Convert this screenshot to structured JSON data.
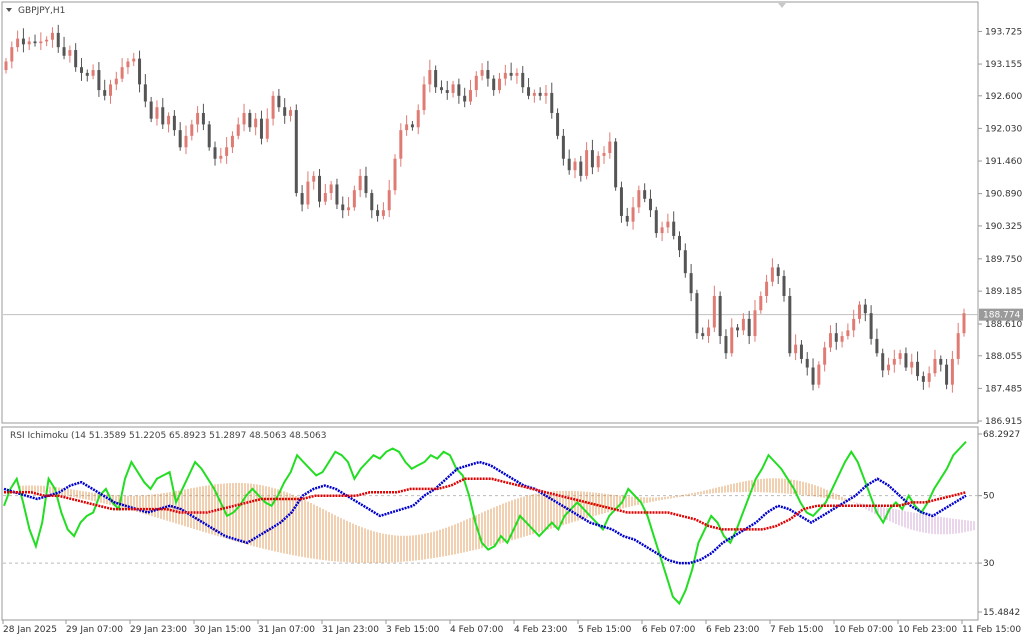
{
  "window": {
    "symbol_label": "GBPJPY,H1",
    "indicator_label": "RSI Ichimoku (14 51.3589 51.2205 65.8923 51.2897 48.5063 48.5063"
  },
  "colors": {
    "bull_candle": "#e07b74",
    "bear_candle": "#555555",
    "tenkan": "#e00000",
    "kijun": "#0000cc",
    "chikou": "#22dd22",
    "cloud_up": "#d98a3a",
    "cloud_down": "#cc99cc",
    "current_price_tag": "#9a9a9a"
  },
  "chart_data": [
    {
      "type": "candlestick",
      "ylim": [
        186.915,
        194.1
      ],
      "y_ticks": [
        "193.725",
        "193.155",
        "192.600",
        "192.030",
        "191.460",
        "190.890",
        "190.325",
        "189.750",
        "189.185",
        "188.610",
        "188.055",
        "187.485",
        "186.915"
      ],
      "current_price": "188.774",
      "current_price_value": 188.774,
      "x_ticks": [
        "28 Jan 2025",
        "29 Jan 07:00",
        "29 Jan 23:00",
        "30 Jan 15:00",
        "31 Jan 07:00",
        "31 Jan 23:00",
        "3 Feb 15:00",
        "4 Feb 07:00",
        "4 Feb 23:00",
        "5 Feb 15:00",
        "6 Feb 07:00",
        "6 Feb 23:00",
        "7 Feb 15:00",
        "10 Feb 07:00",
        "10 Feb 23:00",
        "11 Feb 15:00"
      ],
      "close": [
        193.2,
        193.45,
        193.6,
        193.5,
        193.55,
        193.52,
        193.55,
        193.58,
        193.7,
        193.45,
        193.3,
        193.4,
        193.1,
        193.0,
        192.95,
        193.05,
        192.7,
        192.6,
        192.8,
        192.9,
        193.1,
        193.2,
        193.25,
        192.8,
        192.5,
        192.2,
        192.4,
        192.1,
        192.25,
        192.0,
        191.7,
        191.9,
        192.1,
        192.3,
        192.1,
        191.7,
        191.5,
        191.55,
        191.7,
        191.9,
        192.1,
        192.3,
        192.05,
        192.2,
        191.85,
        192.2,
        192.6,
        192.4,
        192.25,
        192.35,
        190.9,
        190.7,
        191.1,
        191.2,
        190.75,
        190.9,
        191.05,
        190.7,
        190.6,
        190.65,
        190.95,
        191.2,
        190.9,
        190.6,
        190.5,
        190.6,
        190.95,
        191.5,
        192.0,
        192.1,
        192.05,
        192.35,
        192.8,
        193.05,
        192.75,
        192.7,
        192.65,
        192.8,
        192.6,
        192.5,
        192.7,
        192.95,
        193.05,
        192.9,
        192.7,
        192.9,
        193.0,
        192.95,
        193.0,
        192.75,
        192.6,
        192.65,
        192.6,
        192.65,
        192.3,
        191.9,
        191.5,
        191.3,
        191.45,
        191.2,
        191.65,
        191.35,
        191.55,
        191.6,
        191.8,
        191.0,
        190.5,
        190.4,
        190.65,
        190.95,
        190.8,
        190.6,
        190.2,
        190.3,
        190.4,
        190.15,
        189.9,
        189.5,
        189.15,
        188.45,
        188.4,
        188.55,
        189.1,
        188.4,
        188.1,
        188.55,
        188.5,
        188.7,
        188.4,
        188.85,
        189.1,
        189.35,
        189.6,
        189.45,
        189.1,
        188.1,
        188.25,
        188.0,
        187.85,
        187.55,
        187.9,
        188.2,
        188.45,
        188.3,
        188.4,
        188.5,
        188.7,
        188.95,
        188.8,
        188.35,
        188.1,
        187.8,
        187.9,
        188.0,
        188.1,
        187.85,
        187.95,
        187.7,
        187.6,
        187.75,
        188.0,
        187.9,
        187.55,
        188.0,
        188.45,
        188.8
      ],
      "x_ticks_source": "hourly bars"
    },
    {
      "type": "line",
      "ylim": [
        15.4842,
        68.2927
      ],
      "y_ticks": [
        "68.2927",
        "50",
        "30",
        "15.4842"
      ],
      "levels": [
        50,
        30
      ],
      "series": [
        {
          "name": "RSI",
          "color_key": "chikou",
          "style": "solid",
          "values": [
            47,
            52,
            55,
            48,
            40,
            35,
            42,
            55,
            52,
            45,
            40,
            38,
            42,
            44,
            45,
            50,
            52,
            48,
            46,
            55,
            60,
            57,
            54,
            52,
            55,
            56,
            57,
            48,
            52,
            56,
            60,
            58,
            55,
            52,
            48,
            44,
            45,
            47,
            50,
            52,
            50,
            48,
            47,
            50,
            54,
            57,
            62,
            60,
            58,
            56,
            57,
            60,
            63,
            62,
            60,
            55,
            58,
            60,
            62,
            61,
            63,
            64,
            63,
            60,
            58,
            59,
            60,
            62,
            61,
            63,
            62,
            58,
            56,
            50,
            42,
            36,
            34,
            35,
            38,
            36,
            40,
            44,
            42,
            40,
            38,
            40,
            42,
            40,
            44,
            46,
            48,
            46,
            44,
            42,
            40,
            44,
            46,
            48,
            52,
            50,
            48,
            44,
            38,
            32,
            26,
            20,
            18,
            22,
            28,
            36,
            40,
            44,
            42,
            38,
            36,
            40,
            45,
            50,
            55,
            58,
            62,
            60,
            58,
            55,
            52,
            48,
            45,
            44,
            46,
            48,
            52,
            56,
            60,
            63,
            60,
            55,
            50,
            45,
            42,
            46,
            48,
            46,
            50,
            47,
            45,
            48,
            52,
            55,
            58,
            62,
            64,
            66
          ],
          "x_step": 5.4
        },
        {
          "name": "Kijun",
          "color_key": "kijun",
          "style": "dotted",
          "values": [
            52,
            51,
            50,
            49,
            50,
            51,
            53,
            54,
            52,
            50,
            48,
            47,
            46,
            45,
            46,
            47,
            46,
            44,
            42,
            40,
            38,
            37,
            36,
            38,
            40,
            42,
            45,
            50,
            52,
            53,
            52,
            50,
            48,
            46,
            44,
            45,
            46,
            47,
            50,
            52,
            55,
            58,
            59,
            60,
            59,
            57,
            55,
            53,
            52,
            50,
            48,
            46,
            44,
            42,
            41,
            40,
            38,
            37,
            35,
            33,
            31,
            30,
            30,
            31,
            33,
            36,
            38,
            40,
            42,
            45,
            47,
            46,
            44,
            42,
            44,
            46,
            48,
            50,
            53,
            55,
            53,
            50,
            47,
            45,
            44,
            46,
            48,
            50
          ]
        },
        {
          "name": "Tenkan",
          "color_key": "tenkan",
          "style": "dotted",
          "values": [
            51,
            51,
            51,
            50,
            50,
            49,
            48,
            47,
            46,
            46,
            46,
            46,
            46,
            45,
            45,
            45,
            46,
            47,
            48,
            49,
            49,
            49,
            49,
            50,
            50,
            50,
            50,
            51,
            51,
            51,
            52,
            52,
            52,
            53,
            55,
            55,
            55,
            54,
            53,
            52,
            51,
            50,
            49,
            48,
            47,
            46,
            45,
            45,
            45,
            45,
            44,
            43,
            41,
            40,
            40,
            40,
            40,
            41,
            43,
            46,
            47,
            47,
            47,
            47,
            47,
            47,
            47,
            48,
            48,
            49,
            50,
            51
          ]
        }
      ]
    }
  ]
}
